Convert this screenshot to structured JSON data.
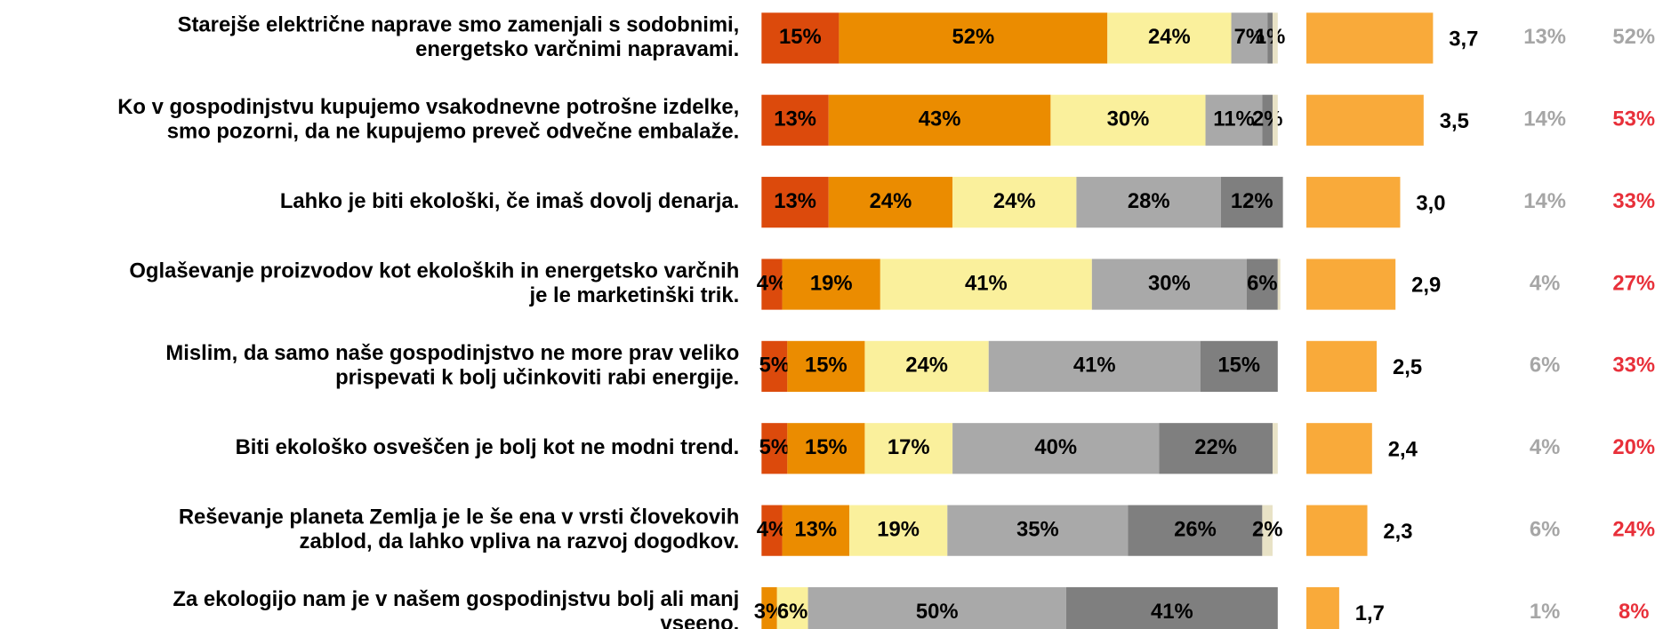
{
  "chart_data": {
    "type": "bar",
    "orientation": "horizontal",
    "stacked": true,
    "categories": [
      [
        "Starejše električne naprave smo zamenjali s sodobnimi,",
        "energetsko varčnimi napravami."
      ],
      [
        "Ko v gospodinjstvu kupujemo vsakodnevne potrošne izdelke,",
        "smo pozorni, da ne kupujemo preveč odvečne embalaže."
      ],
      [
        "Lahko je biti ekološki, če imaš dovolj denarja."
      ],
      [
        "Oglaševanje proizvodov kot ekoloških in energetsko varčnih",
        "je le marketinški trik."
      ],
      [
        "Mislim, da samo naše gospodinjstvo ne more prav veliko",
        "prispevati k bolj učinkoviti rabi energije."
      ],
      [
        "Biti ekološko osveščen je bolj kot ne modni trend."
      ],
      [
        "Reševanje planeta Zemlja je le še ena v vrsti človekovih",
        "zablod, da lahko vpliva na razvoj dogodkov."
      ],
      [
        "Za ekologijo nam je v našem gospodinjstvu bolj ali manj",
        "vseeno."
      ]
    ],
    "xlim": [
      0,
      100
    ],
    "series": [
      {
        "color": "#dc4a0c",
        "values": [
          15,
          13,
          13,
          4,
          5,
          5,
          4,
          null
        ],
        "value_labels": [
          "15%",
          "13%",
          "13%",
          "4%",
          "5%",
          "5%",
          "4%",
          null
        ]
      },
      {
        "color": "#eb8c00",
        "values": [
          52,
          43,
          24,
          19,
          15,
          15,
          13,
          3
        ],
        "value_labels": [
          "52%",
          "43%",
          "24%",
          "19%",
          "15%",
          "15%",
          "13%",
          "3%"
        ]
      },
      {
        "color": "#faf09c",
        "values": [
          24,
          30,
          24,
          41,
          24,
          17,
          19,
          6
        ],
        "value_labels": [
          "24%",
          "30%",
          "24%",
          "41%",
          "24%",
          "17%",
          "19%",
          "6%"
        ]
      },
      {
        "color": "#a9a9a9",
        "values": [
          7,
          11,
          28,
          30,
          41,
          40,
          35,
          50
        ],
        "value_labels": [
          "7%",
          "11%",
          "28%",
          "30%",
          "41%",
          "40%",
          "35%",
          "50%"
        ]
      },
      {
        "color": "#7f7f7f",
        "values": [
          1,
          2,
          12,
          6,
          15,
          22,
          26,
          41
        ],
        "value_labels": [
          "1%",
          "2%",
          "12%",
          "6%",
          "15%",
          "22%",
          "26%",
          "41%"
        ]
      },
      {
        "color": "#e8e2c6",
        "values": [
          1,
          1,
          0,
          0.5,
          0,
          1,
          2,
          0
        ],
        "value_labels": [
          null,
          null,
          null,
          null,
          null,
          null,
          "2%",
          null
        ]
      }
    ],
    "means": {
      "color": "#f9aa3a",
      "xlim": [
        1,
        5
      ],
      "values": [
        3.7,
        3.5,
        3.0,
        2.9,
        2.5,
        2.4,
        2.3,
        1.7
      ],
      "value_labels": [
        "3,7",
        "3,5",
        "3,0",
        "2,9",
        "2,5",
        "2,4",
        "2,3",
        "1,7"
      ]
    },
    "share_low": {
      "color": "#a6a6a6",
      "values": [
        13,
        14,
        14,
        4,
        6,
        4,
        6,
        1
      ],
      "value_labels": [
        "13%",
        "14%",
        "14%",
        "4%",
        "6%",
        "4%",
        "6%",
        "1%"
      ]
    },
    "share_high": {
      "colors": [
        "#a6a6a6",
        "#e8303a",
        "#e8303a",
        "#e8303a",
        "#e8303a",
        "#e8303a",
        "#e8303a",
        "#e8303a"
      ],
      "values": [
        52,
        53,
        33,
        27,
        33,
        20,
        24,
        8
      ],
      "value_labels": [
        "52%",
        "53%",
        "33%",
        "27%",
        "33%",
        "20%",
        "24%",
        "8%"
      ]
    }
  }
}
